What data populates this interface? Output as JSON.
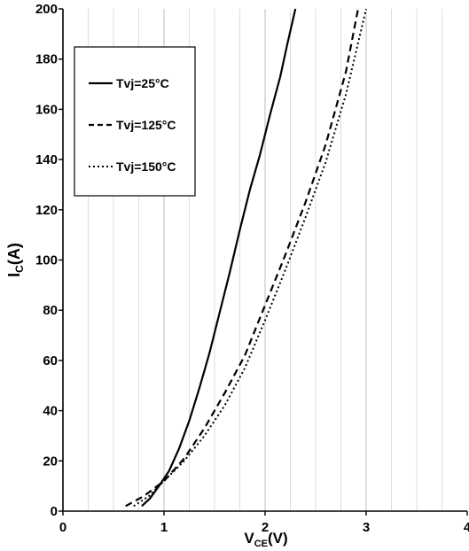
{
  "chart_data": {
    "type": "line",
    "title": "",
    "xlabel": {
      "main": "V",
      "sub": "CE",
      "unit": "(V)"
    },
    "ylabel": {
      "main": "I",
      "sub": "C",
      "unit": "(A)"
    },
    "xlim": [
      0,
      4
    ],
    "ylim": [
      0,
      200
    ],
    "x_ticks": [
      0,
      1,
      2,
      3,
      4
    ],
    "y_ticks": [
      0,
      20,
      40,
      60,
      80,
      100,
      120,
      140,
      160,
      180,
      200
    ],
    "grid": {
      "vertical": true,
      "horizontal": false,
      "minor_x_step": 0.25
    },
    "legend_position": "top-left",
    "series": [
      {
        "name": "Tvj=25°C",
        "style": "solid",
        "points": [
          [
            0.78,
            2
          ],
          [
            0.86,
            5
          ],
          [
            0.95,
            10
          ],
          [
            1.05,
            16
          ],
          [
            1.15,
            25
          ],
          [
            1.25,
            36
          ],
          [
            1.35,
            49
          ],
          [
            1.45,
            63
          ],
          [
            1.55,
            79
          ],
          [
            1.65,
            95
          ],
          [
            1.75,
            112
          ],
          [
            1.85,
            128
          ],
          [
            1.95,
            142
          ],
          [
            2.05,
            158
          ],
          [
            2.15,
            173
          ],
          [
            2.22,
            186
          ],
          [
            2.3,
            200
          ]
        ]
      },
      {
        "name": "Tvj=125°C",
        "style": "dashed",
        "points": [
          [
            0.62,
            2
          ],
          [
            0.8,
            6
          ],
          [
            1.0,
            12
          ],
          [
            1.2,
            21
          ],
          [
            1.4,
            33
          ],
          [
            1.6,
            47
          ],
          [
            1.8,
            62
          ],
          [
            2.0,
            82
          ],
          [
            2.2,
            102
          ],
          [
            2.4,
            123
          ],
          [
            2.6,
            146
          ],
          [
            2.8,
            175
          ],
          [
            2.92,
            200
          ]
        ]
      },
      {
        "name": "Tvj=150°C",
        "style": "dotted",
        "points": [
          [
            0.7,
            2
          ],
          [
            0.85,
            6
          ],
          [
            1.0,
            12
          ],
          [
            1.2,
            20
          ],
          [
            1.4,
            30
          ],
          [
            1.6,
            42
          ],
          [
            1.8,
            57
          ],
          [
            2.0,
            76
          ],
          [
            2.2,
            96
          ],
          [
            2.4,
            117
          ],
          [
            2.6,
            139
          ],
          [
            2.8,
            166
          ],
          [
            3.0,
            200
          ]
        ]
      }
    ]
  }
}
